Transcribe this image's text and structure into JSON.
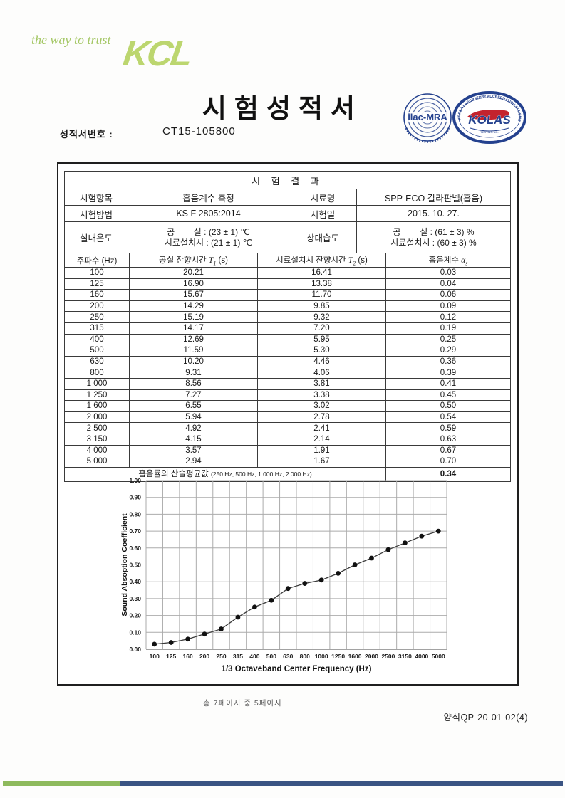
{
  "header": {
    "tagline": "the way to trust",
    "brand": "KCL",
    "title": "시험성적서",
    "report_no_label": "성적서번호 :",
    "report_no": "CT15-105800"
  },
  "seals": {
    "ilac_text": "ilac-MRA",
    "kolas_text": "KOLAS",
    "kolas_ring_text": "KOREA LABORATORY ACCREDITATION SCHEME",
    "kolas_small_text": "TESTING NO."
  },
  "results": {
    "section_title": "시 험 결 과",
    "info_rows": [
      {
        "label": "시험항목",
        "value": "흡음계수 측정",
        "label2": "시료명",
        "value2": "SPP-ECO 칼라판넬(흡음)"
      },
      {
        "label": "시험방법",
        "value": "KS F 2805:2014",
        "label2": "시험일",
        "value2": "2015. 10. 27."
      },
      {
        "label": "실내온도",
        "value_lines": [
          "공        실 : (23 ± 1) ℃",
          "시료설치시 : (21 ± 1) ℃"
        ],
        "label2": "상대습도",
        "value2_lines": [
          "공        실 : (61 ± 3) %",
          "시료설치시 : (60 ± 3) %"
        ]
      }
    ],
    "table": {
      "col_freq": "주파수 (Hz)",
      "t1_pre": "공실 잔향시간",
      "t1_sym": "T",
      "t1_sub": "1",
      "t1_post": "(s)",
      "t2_pre": "시료설치시 잔향시간",
      "t2_sym": "T",
      "t2_sub": "2",
      "t2_post": "(s)",
      "alpha_pre": "흡음계수",
      "alpha_sym": "α",
      "alpha_sub": "s",
      "rows": [
        [
          "100",
          "20.21",
          "16.41",
          "0.03"
        ],
        [
          "125",
          "16.90",
          "13.38",
          "0.04"
        ],
        [
          "160",
          "15.67",
          "11.70",
          "0.06"
        ],
        [
          "200",
          "14.29",
          "9.85",
          "0.09"
        ],
        [
          "250",
          "15.19",
          "9.32",
          "0.12"
        ],
        [
          "315",
          "14.17",
          "7.20",
          "0.19"
        ],
        [
          "400",
          "12.69",
          "5.95",
          "0.25"
        ],
        [
          "500",
          "11.59",
          "5.30",
          "0.29"
        ],
        [
          "630",
          "10.20",
          "4.46",
          "0.36"
        ],
        [
          "800",
          "9.31",
          "4.06",
          "0.39"
        ],
        [
          "1 000",
          "8.56",
          "3.81",
          "0.41"
        ],
        [
          "1 250",
          "7.27",
          "3.38",
          "0.45"
        ],
        [
          "1 600",
          "6.55",
          "3.02",
          "0.50"
        ],
        [
          "2 000",
          "5.94",
          "2.78",
          "0.54"
        ],
        [
          "2 500",
          "4.92",
          "2.41",
          "0.59"
        ],
        [
          "3 150",
          "4.15",
          "2.14",
          "0.63"
        ],
        [
          "4 000",
          "3.57",
          "1.91",
          "0.67"
        ],
        [
          "5 000",
          "2.94",
          "1.67",
          "0.70"
        ]
      ],
      "avg_label": "흡음률의 산술평균값",
      "avg_note": "(250 Hz, 500 Hz, 1 000 Hz, 2 000 Hz)",
      "avg_value": "0.34"
    }
  },
  "chart_data": {
    "type": "line",
    "categories": [
      "100",
      "125",
      "160",
      "200",
      "250",
      "315",
      "400",
      "500",
      "630",
      "800",
      "1000",
      "1250",
      "1600",
      "2000",
      "2500",
      "3150",
      "4000",
      "5000"
    ],
    "values": [
      0.03,
      0.04,
      0.06,
      0.09,
      0.12,
      0.19,
      0.25,
      0.29,
      0.36,
      0.39,
      0.41,
      0.45,
      0.5,
      0.54,
      0.59,
      0.63,
      0.67,
      0.7
    ],
    "title": "",
    "xlabel": "1/3 Octaveband Center Frequency (Hz)",
    "ylabel": "Sound Absoption Coefficient",
    "ylim": [
      0.0,
      1.0
    ],
    "ytick_step": 0.1,
    "grid": true,
    "legend": "none",
    "marker": "filled-circle",
    "line_color": "#3a3a3a",
    "marker_color": "#111111",
    "grid_color": "#ababab"
  },
  "footer": {
    "page_info": "총 7페이지 중 5페이지",
    "form_no": "양식QP-20-01-02(4)"
  },
  "colors": {
    "brand_green": "#bcd66f",
    "tagline_green": "#a4c765",
    "bar_green": "#8eba5d",
    "bar_blue": "#3a5483",
    "seal_blue": "#24418e",
    "seal_red": "#c4232e"
  }
}
